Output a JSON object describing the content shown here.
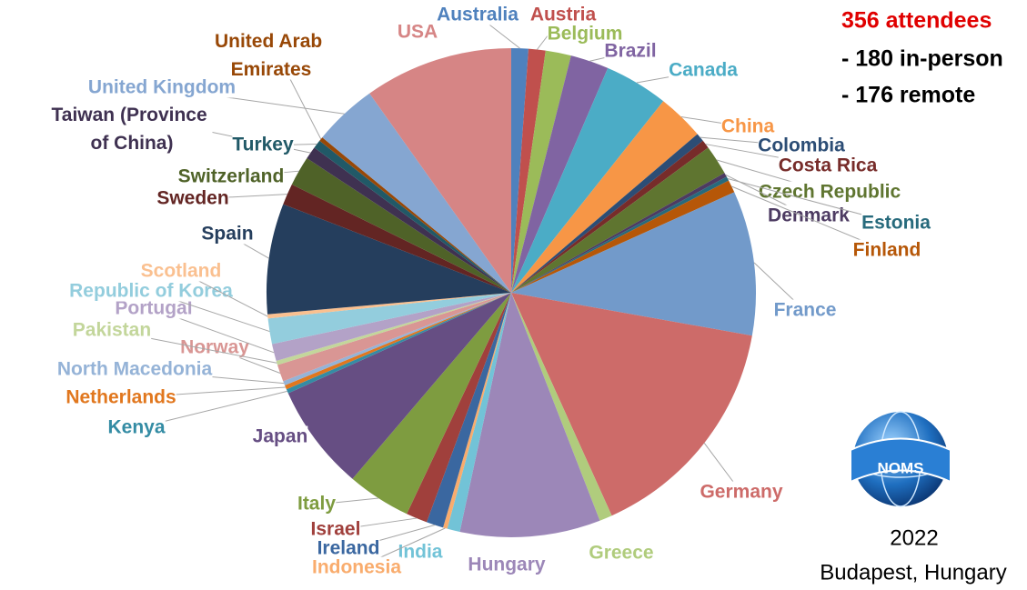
{
  "chart_data": {
    "type": "pie",
    "categories": [
      "Australia",
      "Austria",
      "Belgium",
      "Brazil",
      "Canada",
      "China",
      "Colombia",
      "Costa Rica",
      "Czech Republic",
      "Denmark",
      "Estonia",
      "Finland",
      "France",
      "Germany",
      "Greece",
      "Hungary",
      "India",
      "Indonesia",
      "Ireland",
      "Israel",
      "Italy",
      "Japan",
      "Kenya",
      "Netherlands",
      "North Macedonia",
      "Norway",
      "Pakistan",
      "Portugal",
      "Republic of Korea",
      "Scotland",
      "Spain",
      "Sweden",
      "Switzerland",
      "Taiwan (Province of China)",
      "Turkey",
      "United Arab Emirates",
      "United Kingdom",
      "USA"
    ],
    "values": [
      4,
      4,
      6,
      9,
      15,
      11,
      2,
      2,
      7,
      1,
      1,
      3,
      34,
      55,
      3,
      33,
      3,
      1,
      4,
      5,
      15,
      25,
      1,
      1,
      1,
      4,
      1,
      4,
      6,
      1,
      26,
      5,
      7,
      3,
      2,
      1,
      15,
      35
    ],
    "colors": [
      "#4f81bd",
      "#c0504d",
      "#9bbb59",
      "#8064a2",
      "#4bacc6",
      "#f79646",
      "#2c4d75",
      "#772c2a",
      "#5f7530",
      "#4d3b62",
      "#276a7c",
      "#b65708",
      "#729aca",
      "#cd6b69",
      "#b0cc7d",
      "#9c87b8",
      "#72c3d7",
      "#f9ac6d",
      "#3a67a0",
      "#a0403c",
      "#7e9c40",
      "#664e83",
      "#348ca4",
      "#e1771e",
      "#95b3d7",
      "#d99694",
      "#c3d69b",
      "#b3a2c7",
      "#93cddd",
      "#fac090",
      "#253e5d",
      "#632523",
      "#4f6228",
      "#3f3151",
      "#215967",
      "#984807",
      "#85a6d1",
      "#d68585"
    ],
    "annotations": [
      "356 attendees",
      "- 180 in-person",
      "- 176 remote"
    ],
    "year": "2022",
    "location": "Budapest, Hungary",
    "logo_text": "NOMS"
  }
}
